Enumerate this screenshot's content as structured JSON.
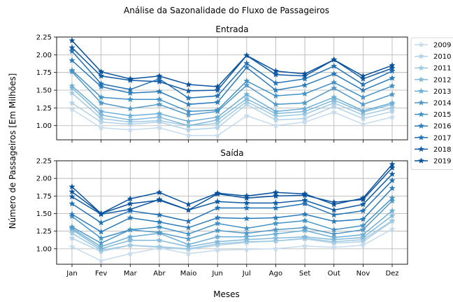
{
  "figure": {
    "suptitle": "Análise da Sazonalidade do Fluxo de Passageiros",
    "xlabel": "Meses",
    "ylabel": "Número de Passageiros [Em Milhões]"
  },
  "colors": {
    "series": [
      "#c6dbef",
      "#b3d1e8",
      "#9ecae1",
      "#84b9da",
      "#6baed6",
      "#5298c7",
      "#4292c6",
      "#2b7bba",
      "#2171b5",
      "#105ba4",
      "#08519c"
    ],
    "grid": "#b0b0b0",
    "axes": "#000000"
  },
  "chart_data": [
    {
      "type": "line",
      "title": "Entrada",
      "marker": "star",
      "grid": true,
      "legend": "right",
      "categories": [
        "Jan",
        "Fev",
        "Mar",
        "Abr",
        "Maio",
        "Jun",
        "Jul",
        "Ago",
        "Set",
        "Out",
        "Nov",
        "Dez"
      ],
      "ylim": [
        0.8,
        2.25
      ],
      "yticks": [
        "1.00",
        "1.25",
        "1.50",
        "1.75",
        "2.00",
        "2.25"
      ],
      "series": [
        {
          "name": "2009",
          "values": [
            1.23,
            0.97,
            0.94,
            0.97,
            0.86,
            0.86,
            1.14,
            1.0,
            1.05,
            1.19,
            1.02,
            1.12
          ]
        },
        {
          "name": "2010",
          "values": [
            1.32,
            1.05,
            1.02,
            1.05,
            0.94,
            0.97,
            1.3,
            1.08,
            1.1,
            1.27,
            1.1,
            1.2
          ]
        },
        {
          "name": "2011",
          "values": [
            1.46,
            1.1,
            1.05,
            1.07,
            1.0,
            1.03,
            1.34,
            1.13,
            1.16,
            1.32,
            1.15,
            1.25
          ]
        },
        {
          "name": "2012",
          "values": [
            1.53,
            1.15,
            1.08,
            1.12,
            1.0,
            1.08,
            1.38,
            1.17,
            1.2,
            1.36,
            1.19,
            1.3
          ]
        },
        {
          "name": "2013",
          "values": [
            1.56,
            1.2,
            1.14,
            1.17,
            1.06,
            1.12,
            1.44,
            1.2,
            1.24,
            1.4,
            1.21,
            1.32
          ]
        },
        {
          "name": "2014",
          "values": [
            1.76,
            1.32,
            1.24,
            1.3,
            1.15,
            1.2,
            1.57,
            1.3,
            1.32,
            1.53,
            1.3,
            1.44
          ]
        },
        {
          "name": "2015",
          "values": [
            1.78,
            1.4,
            1.37,
            1.37,
            1.2,
            1.22,
            1.63,
            1.42,
            1.45,
            1.61,
            1.4,
            1.56
          ]
        },
        {
          "name": "2016",
          "values": [
            1.92,
            1.55,
            1.46,
            1.48,
            1.3,
            1.33,
            1.82,
            1.5,
            1.57,
            1.73,
            1.5,
            1.67
          ]
        },
        {
          "name": "2017",
          "values": [
            2.05,
            1.59,
            1.51,
            1.66,
            1.39,
            1.42,
            1.88,
            1.6,
            1.66,
            1.84,
            1.58,
            1.77
          ]
        },
        {
          "name": "2018",
          "values": [
            2.1,
            1.7,
            1.64,
            1.62,
            1.49,
            1.5,
            1.99,
            1.72,
            1.7,
            1.93,
            1.66,
            1.81
          ]
        },
        {
          "name": "2019",
          "values": [
            2.2,
            1.76,
            1.66,
            1.7,
            1.58,
            1.55,
            1.99,
            1.77,
            1.73,
            1.93,
            1.7,
            1.85
          ]
        }
      ]
    },
    {
      "type": "line",
      "title": "Saída",
      "marker": "star",
      "grid": true,
      "categories": [
        "Jan",
        "Fev",
        "Mar",
        "Abr",
        "Maio",
        "Jun",
        "Jul",
        "Ago",
        "Set",
        "Out",
        "Nov",
        "Dez"
      ],
      "ylim": [
        0.78,
        2.25
      ],
      "yticks": [
        "1.00",
        "1.25",
        "1.50",
        "1.75",
        "2.00",
        "2.25"
      ],
      "series": [
        {
          "name": "2009",
          "values": [
            1.03,
            0.83,
            0.93,
            1.01,
            0.93,
            0.98,
            0.99,
            1.0,
            1.04,
            1.02,
            1.05,
            1.28
          ]
        },
        {
          "name": "2010",
          "values": [
            1.15,
            0.96,
            1.05,
            1.02,
            0.99,
            1.05,
            1.09,
            1.11,
            1.14,
            1.08,
            1.1,
            1.39
          ]
        },
        {
          "name": "2011",
          "values": [
            1.22,
            0.98,
            1.05,
            1.03,
            1.0,
            1.07,
            1.1,
            1.11,
            1.15,
            1.1,
            1.13,
            1.4
          ]
        },
        {
          "name": "2012",
          "values": [
            1.27,
            1.0,
            1.12,
            1.12,
            1.03,
            1.1,
            1.13,
            1.15,
            1.17,
            1.13,
            1.16,
            1.47
          ]
        },
        {
          "name": "2013",
          "values": [
            1.29,
            1.03,
            1.17,
            1.22,
            1.06,
            1.17,
            1.17,
            1.21,
            1.26,
            1.16,
            1.2,
            1.54
          ]
        },
        {
          "name": "2014",
          "values": [
            1.31,
            1.08,
            1.27,
            1.23,
            1.14,
            1.26,
            1.22,
            1.27,
            1.3,
            1.21,
            1.27,
            1.68
          ]
        },
        {
          "name": "2015",
          "values": [
            1.46,
            1.15,
            1.27,
            1.31,
            1.21,
            1.36,
            1.29,
            1.36,
            1.4,
            1.27,
            1.33,
            1.72
          ]
        },
        {
          "name": "2016",
          "values": [
            1.49,
            1.24,
            1.44,
            1.38,
            1.3,
            1.44,
            1.43,
            1.44,
            1.49,
            1.39,
            1.42,
            1.86
          ]
        },
        {
          "name": "2017",
          "values": [
            1.64,
            1.37,
            1.54,
            1.48,
            1.39,
            1.58,
            1.58,
            1.58,
            1.64,
            1.48,
            1.54,
            1.97
          ]
        },
        {
          "name": "2018",
          "values": [
            1.74,
            1.49,
            1.56,
            1.7,
            1.55,
            1.67,
            1.65,
            1.65,
            1.69,
            1.55,
            1.63,
            2.06
          ]
        },
        {
          "name": "2019",
          "values": [
            1.81,
            1.5,
            1.64,
            1.69,
            1.55,
            1.78,
            1.72,
            1.75,
            1.76,
            1.66,
            1.7,
            2.15
          ]
        },
        {
          "name": "",
          "values": [
            1.88,
            1.5,
            1.71,
            1.8,
            1.63,
            1.79,
            1.75,
            1.8,
            1.78,
            1.63,
            1.72,
            2.2
          ]
        }
      ]
    }
  ]
}
